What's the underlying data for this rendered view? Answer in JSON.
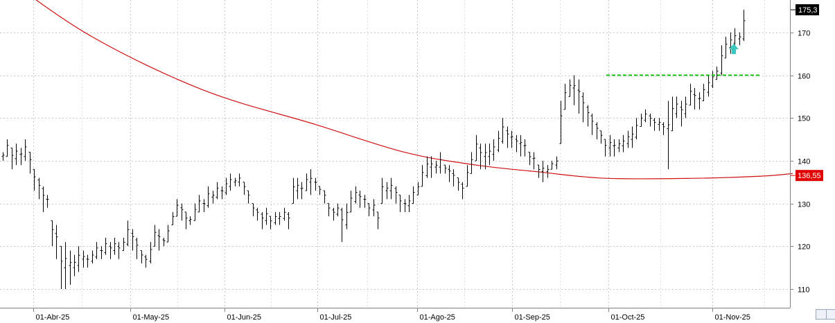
{
  "chart_data": {
    "type": "ohlc-bar",
    "x_ticks": [
      "01-Abr-25",
      "01-May-25",
      "01-Jun-25",
      "01-Jul-25",
      "01-Ago-25",
      "01-Sep-25",
      "01-Oct-25",
      "01-Nov-25"
    ],
    "y_ticks": [
      "110",
      "120",
      "130",
      "140",
      "150",
      "160",
      "170"
    ],
    "ylim": [
      104,
      177
    ],
    "grid": true,
    "last_price_label": "175,3",
    "ma_label": "136,55",
    "resistance_level": 160,
    "colors": {
      "bars": "#000000",
      "moving_average": "#d01010",
      "resistance": "#16c016",
      "arrow": "#3cc8c0",
      "ma_badge": "#e00000",
      "price_badge": "#000000"
    },
    "bars": [
      [
        142,
        140
      ],
      [
        145,
        141
      ],
      [
        143,
        138
      ],
      [
        144,
        139
      ],
      [
        143,
        139
      ],
      [
        145,
        140
      ],
      [
        142,
        137
      ],
      [
        138,
        133
      ],
      [
        136,
        131
      ],
      [
        134,
        128
      ],
      [
        132,
        129
      ],
      [
        126,
        120
      ],
      [
        125,
        117
      ],
      [
        120,
        110
      ],
      [
        121,
        110
      ],
      [
        119,
        111
      ],
      [
        118,
        113
      ],
      [
        120,
        114
      ],
      [
        119,
        115
      ],
      [
        118,
        115
      ],
      [
        119,
        116
      ],
      [
        121,
        117
      ],
      [
        120,
        117
      ],
      [
        122,
        118
      ],
      [
        121,
        117
      ],
      [
        122,
        118
      ],
      [
        121,
        117
      ],
      [
        122,
        119
      ],
      [
        126,
        120
      ],
      [
        124,
        119
      ],
      [
        122,
        117
      ],
      [
        119,
        116
      ],
      [
        118,
        115
      ],
      [
        121,
        116
      ],
      [
        125,
        120
      ],
      [
        124,
        119
      ],
      [
        122,
        120
      ],
      [
        125,
        121
      ],
      [
        128,
        125
      ],
      [
        131,
        127
      ],
      [
        130,
        126
      ],
      [
        128,
        124
      ],
      [
        127,
        125
      ],
      [
        130,
        126
      ],
      [
        132,
        128
      ],
      [
        131,
        128
      ],
      [
        134,
        129
      ],
      [
        133,
        130
      ],
      [
        135,
        131
      ],
      [
        134,
        131
      ],
      [
        136,
        132
      ],
      [
        137,
        133
      ],
      [
        136,
        134
      ],
      [
        137,
        134
      ],
      [
        135,
        132
      ],
      [
        133,
        130
      ],
      [
        130,
        127
      ],
      [
        129,
        126
      ],
      [
        128,
        124
      ],
      [
        129,
        125
      ],
      [
        127,
        124
      ],
      [
        128,
        125
      ],
      [
        128,
        125
      ],
      [
        129,
        126
      ],
      [
        128,
        124
      ],
      [
        136,
        130
      ],
      [
        136,
        131
      ],
      [
        135,
        131
      ],
      [
        137,
        133
      ],
      [
        138,
        132
      ],
      [
        136,
        133
      ],
      [
        134,
        132
      ],
      [
        133,
        130
      ],
      [
        130,
        127
      ],
      [
        129,
        126
      ],
      [
        130,
        127
      ],
      [
        129,
        121
      ],
      [
        130,
        124
      ],
      [
        133,
        128
      ],
      [
        134,
        130
      ],
      [
        133,
        129
      ],
      [
        132,
        129
      ],
      [
        130,
        127
      ],
      [
        131,
        127
      ],
      [
        128,
        124
      ],
      [
        136,
        130
      ],
      [
        135,
        131
      ],
      [
        136,
        131
      ],
      [
        134,
        130
      ],
      [
        132,
        128
      ],
      [
        131,
        128
      ],
      [
        132,
        128
      ],
      [
        134,
        130
      ],
      [
        135,
        132
      ],
      [
        139,
        134
      ],
      [
        141,
        136
      ],
      [
        141,
        136
      ],
      [
        140,
        137
      ],
      [
        142,
        137
      ],
      [
        139,
        137
      ],
      [
        139,
        135
      ],
      [
        138,
        134
      ],
      [
        136,
        133
      ],
      [
        135,
        131
      ],
      [
        139,
        134
      ],
      [
        142,
        137
      ],
      [
        146,
        140
      ],
      [
        144,
        138
      ],
      [
        144,
        138
      ],
      [
        144,
        139
      ],
      [
        145,
        140
      ],
      [
        147,
        142
      ],
      [
        150,
        144
      ],
      [
        148,
        143
      ],
      [
        147,
        143
      ],
      [
        146,
        142
      ],
      [
        146,
        141
      ],
      [
        145,
        141
      ],
      [
        142,
        139
      ],
      [
        142,
        138
      ],
      [
        139,
        136
      ],
      [
        140,
        135
      ],
      [
        139,
        136
      ],
      [
        140,
        138
      ],
      [
        141,
        138
      ],
      [
        154,
        144
      ],
      [
        158,
        152
      ],
      [
        159,
        155
      ],
      [
        160,
        153
      ],
      [
        159,
        151
      ],
      [
        156,
        149
      ],
      [
        153,
        148
      ],
      [
        151,
        146
      ],
      [
        149,
        145
      ],
      [
        147,
        144
      ],
      [
        145,
        141
      ],
      [
        146,
        141
      ],
      [
        145,
        141
      ],
      [
        145,
        142
      ],
      [
        146,
        142
      ],
      [
        147,
        143
      ],
      [
        148,
        143
      ],
      [
        150,
        145
      ],
      [
        151,
        148
      ],
      [
        152,
        149
      ],
      [
        151,
        148
      ],
      [
        150,
        147
      ],
      [
        150,
        147
      ],
      [
        149,
        146
      ],
      [
        154,
        138
      ],
      [
        155,
        147
      ],
      [
        155,
        150
      ],
      [
        154,
        148
      ],
      [
        155,
        150
      ],
      [
        158,
        153
      ],
      [
        157,
        152
      ],
      [
        156,
        152
      ],
      [
        158,
        154
      ],
      [
        160,
        155
      ],
      [
        161,
        157
      ],
      [
        162,
        159
      ],
      [
        167,
        160
      ],
      [
        169,
        164
      ],
      [
        170,
        165
      ],
      [
        171,
        166
      ],
      [
        170,
        167
      ],
      [
        175.3,
        168
      ]
    ],
    "moving_average": [
      [
        0,
        183.2
      ],
      [
        20,
        169
      ],
      [
        45,
        156.5
      ],
      [
        70,
        148.5
      ],
      [
        90,
        142
      ],
      [
        106,
        139
      ],
      [
        120,
        137.4
      ],
      [
        135,
        135.9
      ],
      [
        155,
        135.9
      ],
      [
        170,
        136.4
      ],
      [
        177,
        137
      ]
    ]
  }
}
